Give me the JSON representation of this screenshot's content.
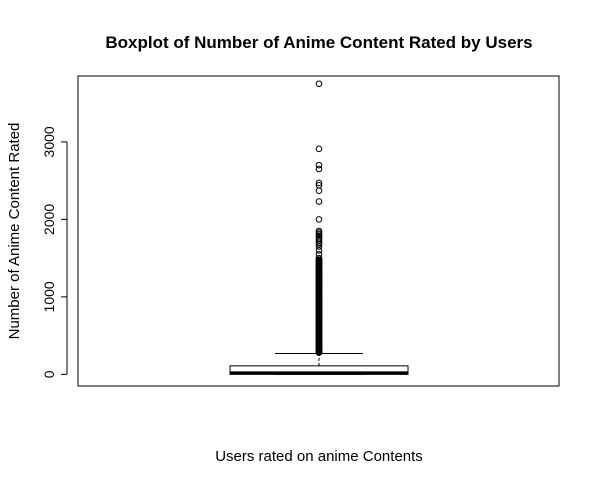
{
  "chart_data": {
    "type": "boxplot",
    "title": "Boxplot of Number of Anime Content Rated by Users",
    "xlabel": "Users rated on anime Contents",
    "ylabel": "Number of Anime Content Rated",
    "ylim": [
      -150,
      3850
    ],
    "yticks": [
      0,
      1000,
      2000,
      3000
    ],
    "grid": false,
    "box": {
      "min": 0,
      "q1": 0,
      "median": 20,
      "q3": 110,
      "whisker_low": 0,
      "whisker_high": 270
    },
    "outliers": [
      3750,
      2910,
      2700,
      2650,
      2470,
      2440,
      2370,
      2230,
      2000,
      1850,
      1830,
      1810,
      1790,
      1770,
      1750,
      1730,
      1700,
      1680,
      1650,
      1600,
      1550,
      1500
    ],
    "outlier_band": [
      280,
      1480
    ],
    "colors": {
      "stroke": "#000000",
      "background": "#ffffff"
    }
  }
}
